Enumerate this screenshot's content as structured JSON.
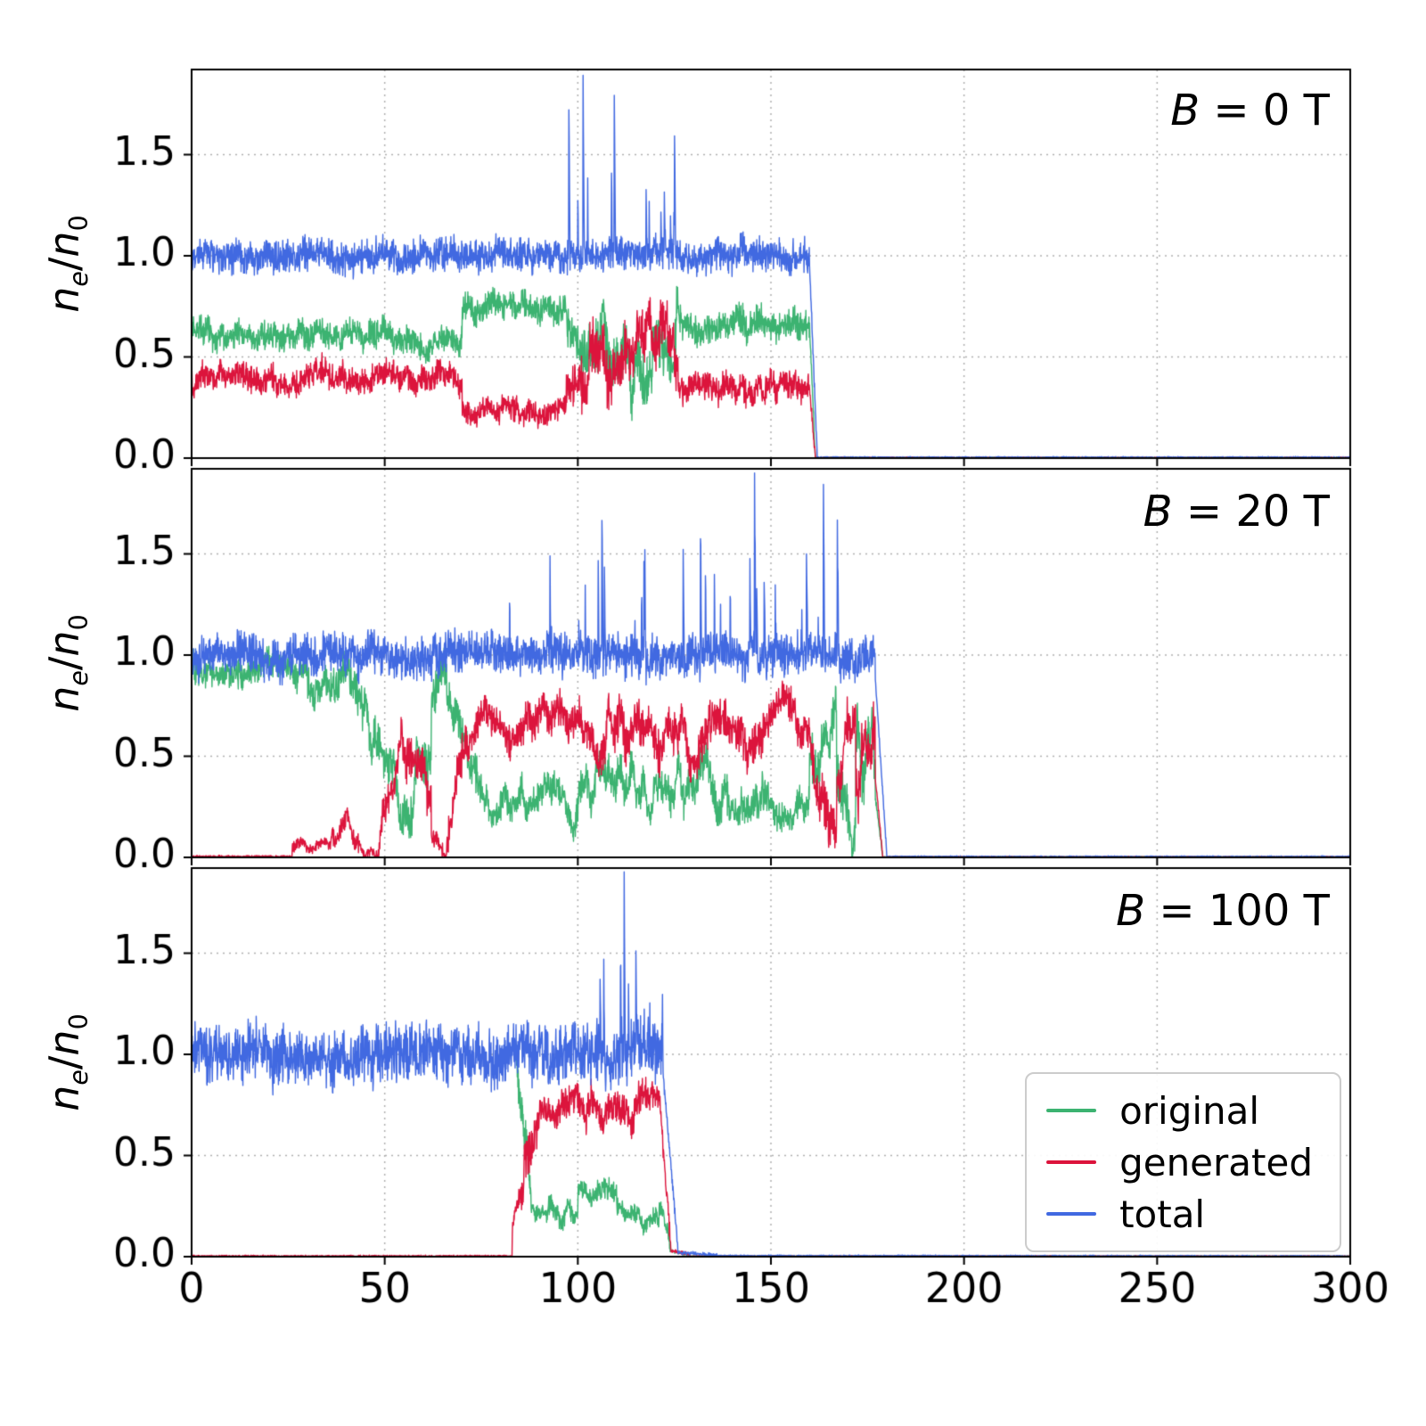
{
  "figure": {
    "ylabel_parts": {
      "base1": "n",
      "sub1": "e",
      "slash": "/",
      "base2": "n",
      "sub2": "0"
    }
  },
  "chart_data": {
    "type": "line",
    "title": "",
    "xlabel": "",
    "ylabel": "n_e/n_0",
    "xlim": [
      0,
      300
    ],
    "ylim": [
      0,
      1.92
    ],
    "grid": {
      "style": "dotted",
      "color": "#b0b0b0",
      "on": true
    },
    "xticks": {
      "values": [
        0,
        50,
        100,
        150,
        200,
        250,
        300
      ],
      "labels": [
        "0",
        "50",
        "100",
        "150",
        "200",
        "250",
        "300"
      ]
    },
    "yticks": {
      "values": [
        0.0,
        0.5,
        1.0,
        1.5
      ],
      "labels": [
        "0.0",
        "0.5",
        "1.0",
        "1.5"
      ]
    },
    "legend": {
      "position": "lower right of bottom panel",
      "entries": [
        {
          "label": "original",
          "color": "#3cb371"
        },
        {
          "label": "generated",
          "color": "#dc143c"
        },
        {
          "label": "total",
          "color": "#4169e1"
        }
      ]
    },
    "segment_format": "[x_start, x_end, y_start, y_end, hf_noise_amp, lf_wander_amp] — piecewise-linear mean level of each noisy trace, read from the plot",
    "spike_format": "[x_start, x_end, probability_per_sample, spike_min_height, spike_max_height]",
    "panels": [
      {
        "annotation_var": "B",
        "annotation_rest": " = 0 T",
        "series": [
          {
            "name": "original",
            "color": "#3cb371",
            "segments": [
              [
                0,
                70,
                0.6,
                0.6,
                0.045,
                0.05
              ],
              [
                70,
                97,
                0.75,
                0.76,
                0.045,
                0.05
              ],
              [
                97,
                101,
                0.72,
                0.48,
                0.08,
                0.15
              ],
              [
                101,
                126,
                0.55,
                0.55,
                0.09,
                0.22
              ],
              [
                126,
                160,
                0.65,
                0.65,
                0.05,
                0.06
              ],
              [
                160,
                161.5,
                0.65,
                0.0,
                0.02,
                0
              ],
              [
                161.5,
                300,
                0.002,
                0.002,
                0.002,
                0
              ]
            ]
          },
          {
            "name": "generated",
            "color": "#dc143c",
            "segments": [
              [
                0,
                70,
                0.4,
                0.4,
                0.045,
                0.05
              ],
              [
                70,
                97,
                0.27,
                0.23,
                0.04,
                0.05
              ],
              [
                97,
                101,
                0.3,
                0.52,
                0.08,
                0.15
              ],
              [
                101,
                126,
                0.5,
                0.5,
                0.09,
                0.22
              ],
              [
                126,
                160,
                0.35,
                0.35,
                0.045,
                0.05
              ],
              [
                160,
                161.5,
                0.35,
                0.0,
                0.02,
                0
              ],
              [
                161.5,
                300,
                0.002,
                0.002,
                0.002,
                0
              ]
            ]
          },
          {
            "name": "total",
            "color": "#4169e1",
            "segments": [
              [
                0,
                160,
                1.0,
                1.0,
                0.055,
                0.03
              ],
              [
                160,
                162,
                0.95,
                0.005,
                0.02,
                0
              ],
              [
                162,
                300,
                0.003,
                0.003,
                0.003,
                0
              ]
            ],
            "spikes": [
              [
                97,
                112,
                0.05,
                0.25,
                1.15
              ],
              [
                112,
                128,
                0.035,
                0.1,
                0.55
              ]
            ]
          }
        ]
      },
      {
        "annotation_var": "B",
        "annotation_rest": " = 20 T",
        "series": [
          {
            "name": "original",
            "color": "#3cb371",
            "segments": [
              [
                0,
                30,
                0.95,
                0.92,
                0.05,
                0.05
              ],
              [
                30,
                44,
                0.87,
                0.8,
                0.06,
                0.1
              ],
              [
                44,
                50,
                0.7,
                0.45,
                0.07,
                0.18
              ],
              [
                50,
                62,
                0.35,
                0.3,
                0.07,
                0.24
              ],
              [
                62,
                66,
                0.7,
                0.85,
                0.07,
                0.12
              ],
              [
                66,
                74,
                0.7,
                0.35,
                0.07,
                0.15
              ],
              [
                74,
                100,
                0.3,
                0.28,
                0.05,
                0.12
              ],
              [
                100,
                148,
                0.35,
                0.33,
                0.06,
                0.15
              ],
              [
                148,
                160,
                0.22,
                0.25,
                0.05,
                0.1
              ],
              [
                160,
                167,
                0.3,
                0.7,
                0.08,
                0.22
              ],
              [
                167,
                172,
                0.4,
                0.1,
                0.08,
                0.2
              ],
              [
                172,
                177,
                0.5,
                0.4,
                0.09,
                0.28
              ],
              [
                177,
                179,
                0.3,
                0.0,
                0.01,
                0
              ],
              [
                179,
                300,
                0.002,
                0.002,
                0.002,
                0
              ]
            ]
          },
          {
            "name": "generated",
            "color": "#dc143c",
            "segments": [
              [
                0,
                26,
                0.004,
                0.004,
                0.004,
                0
              ],
              [
                26,
                36,
                0.02,
                0.06,
                0.02,
                0.05
              ],
              [
                36,
                40,
                0.1,
                0.22,
                0.04,
                0.08
              ],
              [
                40,
                44,
                0.22,
                0.05,
                0.03,
                0.06
              ],
              [
                44,
                48,
                0.03,
                0.03,
                0.02,
                0.03
              ],
              [
                48,
                54,
                0.1,
                0.55,
                0.06,
                0.18
              ],
              [
                54,
                62,
                0.58,
                0.4,
                0.07,
                0.2
              ],
              [
                62,
                66,
                0.1,
                0.03,
                0.03,
                0.05
              ],
              [
                66,
                72,
                0.2,
                0.65,
                0.07,
                0.15
              ],
              [
                72,
                100,
                0.66,
                0.62,
                0.06,
                0.12
              ],
              [
                100,
                148,
                0.58,
                0.6,
                0.07,
                0.15
              ],
              [
                148,
                160,
                0.7,
                0.68,
                0.06,
                0.1
              ],
              [
                160,
                167,
                0.6,
                0.3,
                0.08,
                0.2
              ],
              [
                167,
                172,
                0.5,
                0.85,
                0.08,
                0.2
              ],
              [
                172,
                177,
                0.55,
                0.5,
                0.09,
                0.28
              ],
              [
                177,
                179,
                0.4,
                0.0,
                0.01,
                0
              ],
              [
                179,
                300,
                0.002,
                0.002,
                0.002,
                0
              ]
            ]
          },
          {
            "name": "total",
            "color": "#4169e1",
            "segments": [
              [
                0,
                177,
                1.0,
                1.0,
                0.07,
                0.04
              ],
              [
                177,
                180,
                0.9,
                0.01,
                0.01,
                0
              ],
              [
                180,
                300,
                0.003,
                0.003,
                0.003,
                0
              ]
            ],
            "spikes": [
              [
                75,
                172,
                0.018,
                0.25,
                0.85
              ]
            ]
          }
        ]
      },
      {
        "annotation_var": "B",
        "annotation_rest": " = 100 T",
        "series": [
          {
            "name": "original",
            "color": "#3cb371",
            "plot_from": 84,
            "note": "coincides with total (hidden beneath it) for x < 84",
            "segments": [
              [
                84,
                88,
                0.95,
                0.3,
                0.07,
                0.1
              ],
              [
                88,
                100,
                0.25,
                0.22,
                0.035,
                0.08
              ],
              [
                100,
                110,
                0.3,
                0.32,
                0.035,
                0.08
              ],
              [
                110,
                121,
                0.22,
                0.2,
                0.03,
                0.06
              ],
              [
                121,
                124,
                0.28,
                0.05,
                0.03,
                0.02
              ],
              [
                124,
                129,
                0.03,
                0.01,
                0.006,
                0
              ],
              [
                129,
                300,
                0.002,
                0.002,
                0.002,
                0
              ]
            ]
          },
          {
            "name": "generated",
            "color": "#dc143c",
            "segments": [
              [
                0,
                83,
                0.003,
                0.003,
                0.003,
                0
              ],
              [
                83,
                86,
                0.01,
                0.3,
                0.05,
                0.1
              ],
              [
                86,
                90,
                0.45,
                0.7,
                0.08,
                0.25
              ],
              [
                90,
                121,
                0.75,
                0.72,
                0.055,
                0.1
              ],
              [
                121,
                124,
                0.8,
                0.06,
                0.04,
                0.02
              ],
              [
                124,
                129,
                0.03,
                0.01,
                0.006,
                0
              ],
              [
                129,
                300,
                0.002,
                0.002,
                0.002,
                0
              ]
            ]
          },
          {
            "name": "total",
            "color": "#4169e1",
            "segments": [
              [
                0,
                122,
                1.0,
                1.0,
                0.095,
                0.05
              ],
              [
                122,
                126,
                0.92,
                0.03,
                0.02,
                0
              ],
              [
                126,
                136,
                0.02,
                0.008,
                0.006,
                0
              ],
              [
                136,
                300,
                0.004,
                0.002,
                0.003,
                0
              ]
            ],
            "spikes": [
              [
                100,
                123,
                0.03,
                0.15,
                0.8
              ]
            ]
          }
        ]
      }
    ]
  }
}
